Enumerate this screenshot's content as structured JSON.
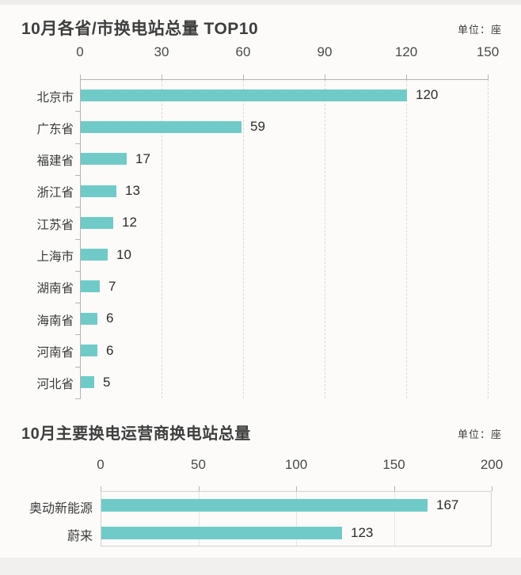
{
  "chart_data": [
    {
      "type": "bar",
      "orientation": "horizontal",
      "title": "10月各省/市换电站总量 TOP10",
      "unit": "单位：座",
      "categories": [
        "北京市",
        "广东省",
        "福建省",
        "浙江省",
        "江苏省",
        "上海市",
        "湖南省",
        "海南省",
        "河南省",
        "河北省"
      ],
      "values": [
        120,
        59,
        17,
        13,
        12,
        10,
        7,
        6,
        6,
        5
      ],
      "value_labels": [
        "120",
        "59",
        "17",
        "13",
        "12",
        "10",
        "7",
        "6",
        "6",
        "5"
      ],
      "xlim": [
        0,
        150
      ],
      "xticks": [
        0,
        30,
        60,
        90,
        120,
        150
      ],
      "xticks_labels": [
        "0",
        "30",
        "60",
        "90",
        "120",
        "150"
      ],
      "grid": "dashed vertical gridlines, axis on top and left",
      "legend": "none",
      "bar_color": "#70CBC8"
    },
    {
      "type": "bar",
      "orientation": "horizontal",
      "title": "10月主要换电运营商换电站总量",
      "unit": "单位：座",
      "categories": [
        "奥动新能源",
        "蔚来"
      ],
      "values": [
        167,
        123
      ],
      "value_labels": [
        "167",
        "123"
      ],
      "xlim": [
        0,
        200
      ],
      "xticks": [
        0,
        50,
        100,
        150,
        200
      ],
      "xticks_labels": [
        "0",
        "50",
        "100",
        "150",
        "200"
      ],
      "grid": "solid vertical gridlines, full box border",
      "legend": "none",
      "bar_color": "#70CBC8"
    }
  ]
}
